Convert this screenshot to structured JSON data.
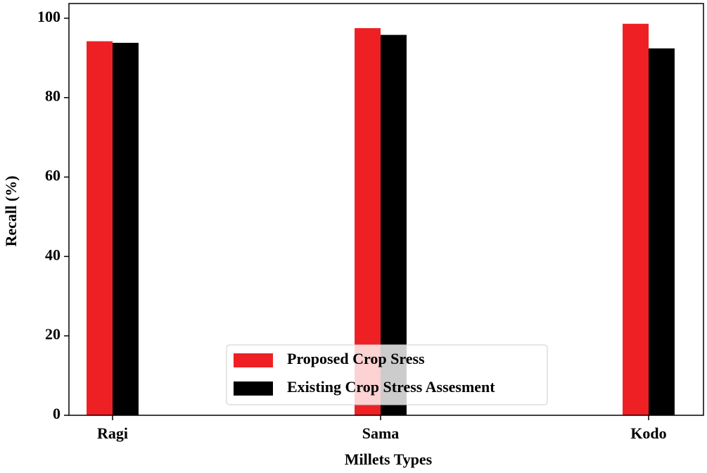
{
  "chart_data": {
    "type": "bar",
    "xlabel": "Millets Types",
    "ylabel": "Recall (%)",
    "categories": [
      "Ragi",
      "Sama",
      "Kodo"
    ],
    "series": [
      {
        "name": "Proposed Crop Sress",
        "color": "#ee2024",
        "values": [
          94.2,
          97.5,
          98.6
        ]
      },
      {
        "name": "Existing Crop Stress Assesment",
        "color": "#000000",
        "values": [
          93.8,
          95.8,
          92.4
        ]
      }
    ],
    "ylim": [
      0,
      103.7
    ],
    "yticks": [
      0,
      20,
      40,
      60,
      80,
      100
    ],
    "legend": "lower center"
  }
}
